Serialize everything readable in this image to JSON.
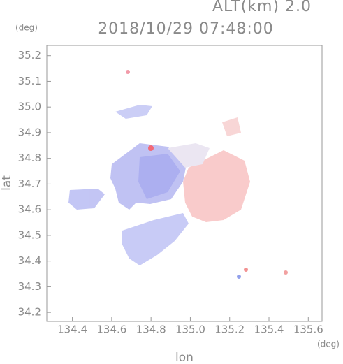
{
  "chart_data": {
    "type": "map",
    "altitude_label": "ALT(km) 2.0",
    "title": "2018/10/29 07:48:00",
    "y_unit": "(deg)",
    "x_unit": "(deg)",
    "ylabel": "lat",
    "xlabel": "lon",
    "xlim": [
      134.27,
      135.67
    ],
    "ylim": [
      34.165,
      35.24
    ],
    "xticks": [
      134.4,
      134.6,
      134.8,
      {
        "value": 135.0,
        "label": "135.0"
      },
      135.2,
      135.4,
      135.6
    ],
    "yticks": [
      34.2,
      34.3,
      34.4,
      34.5,
      34.6,
      34.7,
      34.8,
      34.9,
      {
        "value": 35.0,
        "label": "35.0"
      },
      35.1,
      35.2
    ]
  }
}
